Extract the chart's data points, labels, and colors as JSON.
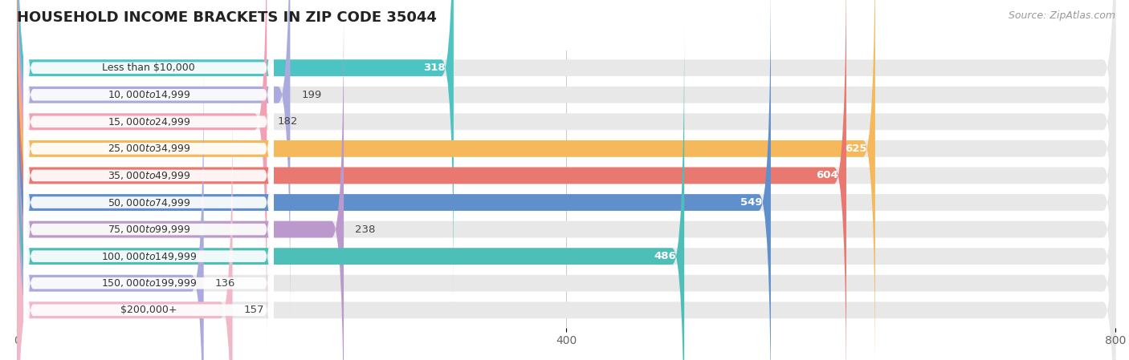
{
  "title": "HOUSEHOLD INCOME BRACKETS IN ZIP CODE 35044",
  "source": "Source: ZipAtlas.com",
  "categories": [
    "Less than $10,000",
    "$10,000 to $14,999",
    "$15,000 to $24,999",
    "$25,000 to $34,999",
    "$35,000 to $49,999",
    "$50,000 to $74,999",
    "$75,000 to $99,999",
    "$100,000 to $149,999",
    "$150,000 to $199,999",
    "$200,000+"
  ],
  "values": [
    318,
    199,
    182,
    625,
    604,
    549,
    238,
    486,
    136,
    157
  ],
  "bar_colors": [
    "#4DC4C4",
    "#AAAADE",
    "#F2A0B5",
    "#F5B85A",
    "#E87870",
    "#6090CC",
    "#BB99CC",
    "#4DBFB8",
    "#AAAADE",
    "#F2B8C8"
  ],
  "xlim": [
    0,
    800
  ],
  "xticks": [
    0,
    400,
    800
  ],
  "bar_bg_color": "#E8E8E8",
  "bar_height": 0.62,
  "bar_gap": 1.0
}
